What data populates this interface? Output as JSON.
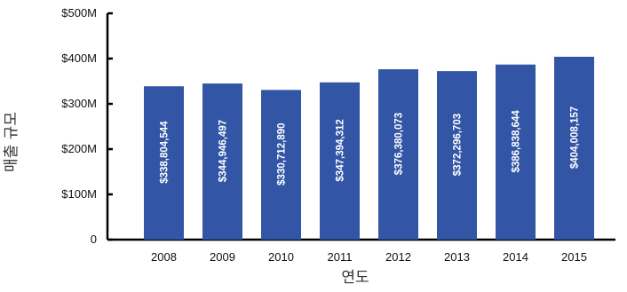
{
  "chart_data": {
    "type": "bar",
    "title": "",
    "xlabel": "연도",
    "ylabel": "매출 규모",
    "categories": [
      "2008",
      "2009",
      "2010",
      "2011",
      "2012",
      "2013",
      "2014",
      "2015"
    ],
    "values": [
      338804544,
      344946497,
      330712890,
      347394312,
      376380073,
      372296703,
      386838644,
      404008157
    ],
    "data_labels": [
      "$338,804,544",
      "$344,946,497",
      "$330,712,890",
      "$347,394,312",
      "$376,380,073",
      "$372,296,703",
      "$386,838,644",
      "$404,008,157"
    ],
    "ylim": [
      0,
      500000000
    ],
    "yticks": [
      0,
      100000000,
      200000000,
      300000000,
      400000000,
      500000000
    ],
    "ytick_labels": [
      "0",
      "$100M",
      "$200M",
      "$300M",
      "$400M",
      "$500M"
    ],
    "grid": false,
    "legend": "none",
    "bar_color": "#3355a6",
    "axis_color": "#000000"
  }
}
